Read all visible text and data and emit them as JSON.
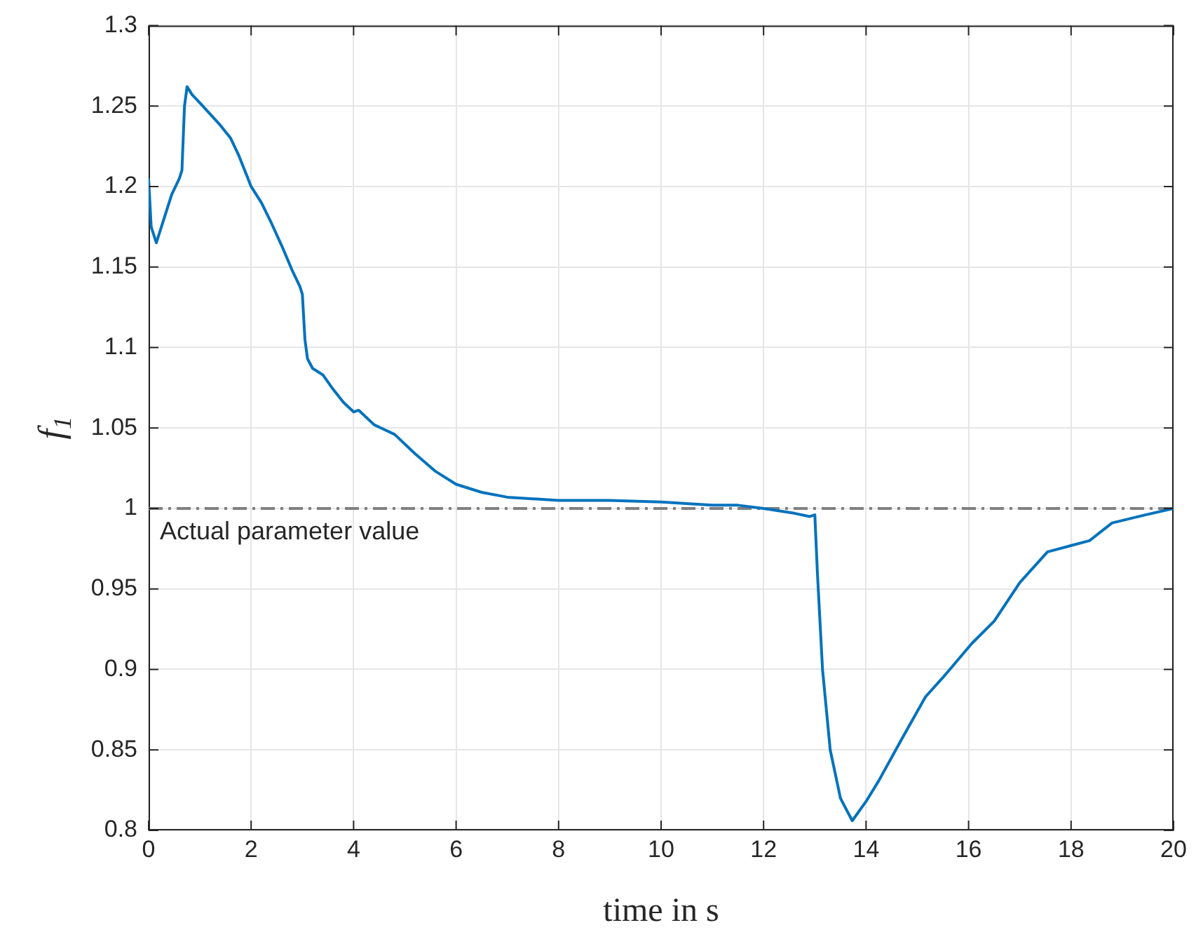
{
  "chart_data": {
    "type": "line",
    "xlabel": "time in s",
    "ylabel": "f$_{1}$",
    "grid": true,
    "marker": "none",
    "line_style": "solid",
    "xlim": [
      0,
      20
    ],
    "xticks": [
      0,
      2,
      4,
      6,
      8,
      10,
      12,
      14,
      16,
      18,
      20
    ],
    "ylim": [
      0.8,
      1.3
    ],
    "yticks": [
      0.8,
      0.85,
      0.9,
      0.95,
      1,
      1.05,
      1.1,
      1.15,
      1.2,
      1.25,
      1.3
    ],
    "ref_lines": [
      {
        "axis": "y",
        "value": 1,
        "label": "Actual parameter value",
        "color": "#808080",
        "line_style": "dashdot"
      }
    ],
    "series": [
      {
        "color": "#0072bd",
        "x": [
          0,
          0.05,
          0.15,
          0.3,
          0.45,
          0.6,
          0.65,
          0.7,
          0.75,
          0.85,
          1.0,
          1.2,
          1.4,
          1.6,
          1.75,
          1.9,
          2.0,
          2.2,
          2.4,
          2.6,
          2.8,
          2.95,
          3.0,
          3.05,
          3.1,
          3.2,
          3.4,
          3.6,
          3.8,
          4.0,
          4.1,
          4.4,
          4.6,
          4.8,
          5.2,
          5.6,
          6.0,
          6.5,
          7,
          8,
          9,
          10,
          11,
          11.5,
          12,
          12.6,
          12.9,
          13.0,
          13.05,
          13.15,
          13.3,
          13.5,
          13.73,
          14.0,
          14.25,
          14.7,
          15.16,
          15.5,
          16.06,
          16.5,
          17.0,
          17.54,
          18.36,
          18.8,
          19.45,
          20
        ],
        "values": [
          1.205,
          1.175,
          1.165,
          1.18,
          1.195,
          1.205,
          1.21,
          1.25,
          1.262,
          1.257,
          1.252,
          1.245,
          1.238,
          1.23,
          1.22,
          1.208,
          1.2,
          1.19,
          1.177,
          1.163,
          1.148,
          1.138,
          1.133,
          1.105,
          1.093,
          1.087,
          1.083,
          1.074,
          1.066,
          1.06,
          1.061,
          1.052,
          1.049,
          1.046,
          1.034,
          1.023,
          1.015,
          1.01,
          1.007,
          1.005,
          1.005,
          1.004,
          1.002,
          1.002,
          1.0,
          0.997,
          0.995,
          0.996,
          0.96,
          0.9,
          0.85,
          0.82,
          0.806,
          0.818,
          0.831,
          0.857,
          0.883,
          0.895,
          0.916,
          0.93,
          0.954,
          0.973,
          0.98,
          0.991,
          0.996,
          1.0
        ]
      }
    ]
  }
}
